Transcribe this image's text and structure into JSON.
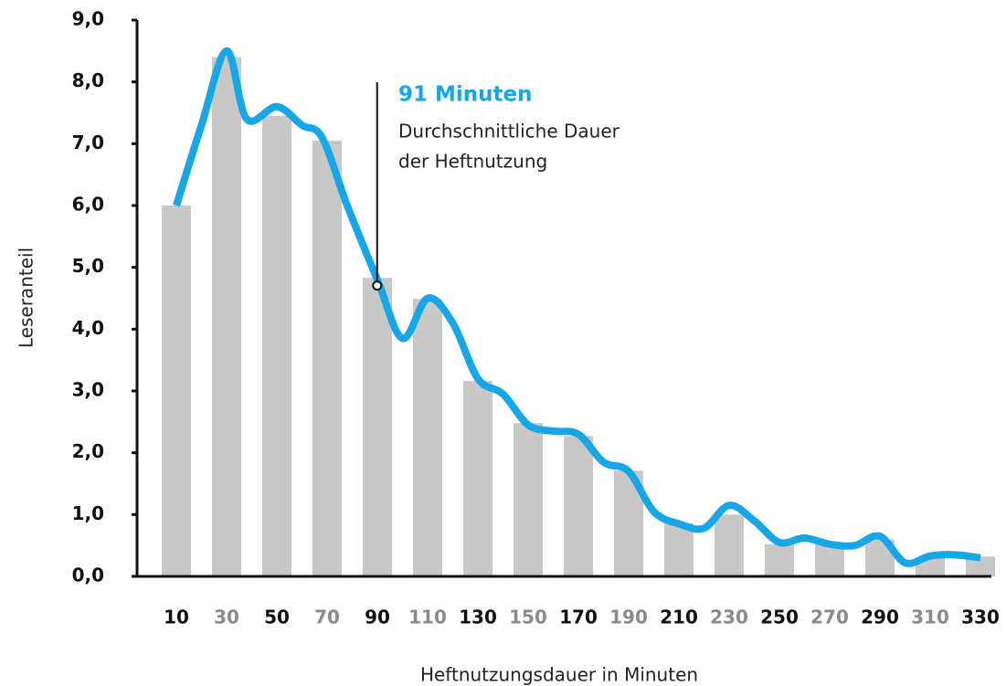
{
  "chart_data": {
    "type": "bar",
    "y_label": "Leseranteil",
    "x_label": "Heftnutzungsdauer in Minuten",
    "categories": [
      10,
      30,
      50,
      70,
      90,
      110,
      130,
      150,
      170,
      190,
      210,
      230,
      250,
      270,
      290,
      310,
      330
    ],
    "tick_colors": [
      "#111111",
      "#8a8a8a"
    ],
    "series": [
      {
        "type": "bar",
        "color": "#c8c8c8",
        "values": [
          6.0,
          8.4,
          7.45,
          7.05,
          4.83,
          4.49,
          3.16,
          2.48,
          2.27,
          1.71,
          0.86,
          1.0,
          0.52,
          0.55,
          0.6,
          0.3,
          0.32
        ]
      },
      {
        "type": "line",
        "color": "#17a6e6",
        "x": [
          10,
          20,
          30,
          38,
          50,
          60,
          68,
          78,
          90,
          100,
          110,
          120,
          130,
          140,
          150,
          160,
          170,
          180,
          190,
          200,
          210,
          220,
          230,
          240,
          250,
          260,
          270,
          280,
          290,
          300,
          310,
          320,
          330
        ],
        "values": [
          6.0,
          7.3,
          8.5,
          7.4,
          7.6,
          7.3,
          7.1,
          6.0,
          4.8,
          3.85,
          4.5,
          4.1,
          3.2,
          2.95,
          2.45,
          2.35,
          2.3,
          1.85,
          1.7,
          1.05,
          0.85,
          0.78,
          1.15,
          0.9,
          0.55,
          0.62,
          0.52,
          0.5,
          0.65,
          0.22,
          0.33,
          0.35,
          0.3
        ]
      }
    ],
    "annotation": {
      "x": 91,
      "title": "91 Minuten",
      "lines": [
        "Durchschnittliche Dauer",
        "der Heftnutzung"
      ],
      "color": "#17a6e6"
    },
    "ylim": [
      0,
      9
    ],
    "yticks": [
      {
        "value": 0,
        "label": "0,0"
      },
      {
        "value": 1,
        "label": "1,0"
      },
      {
        "value": 2,
        "label": "2,0"
      },
      {
        "value": 3,
        "label": "3,0"
      },
      {
        "value": 4,
        "label": "4,0"
      },
      {
        "value": 5,
        "label": "5,0"
      },
      {
        "value": 6,
        "label": "6,0"
      },
      {
        "value": 7,
        "label": "7,0"
      },
      {
        "value": 8,
        "label": "8,0"
      },
      {
        "value": 9,
        "label": "9,0"
      }
    ]
  }
}
